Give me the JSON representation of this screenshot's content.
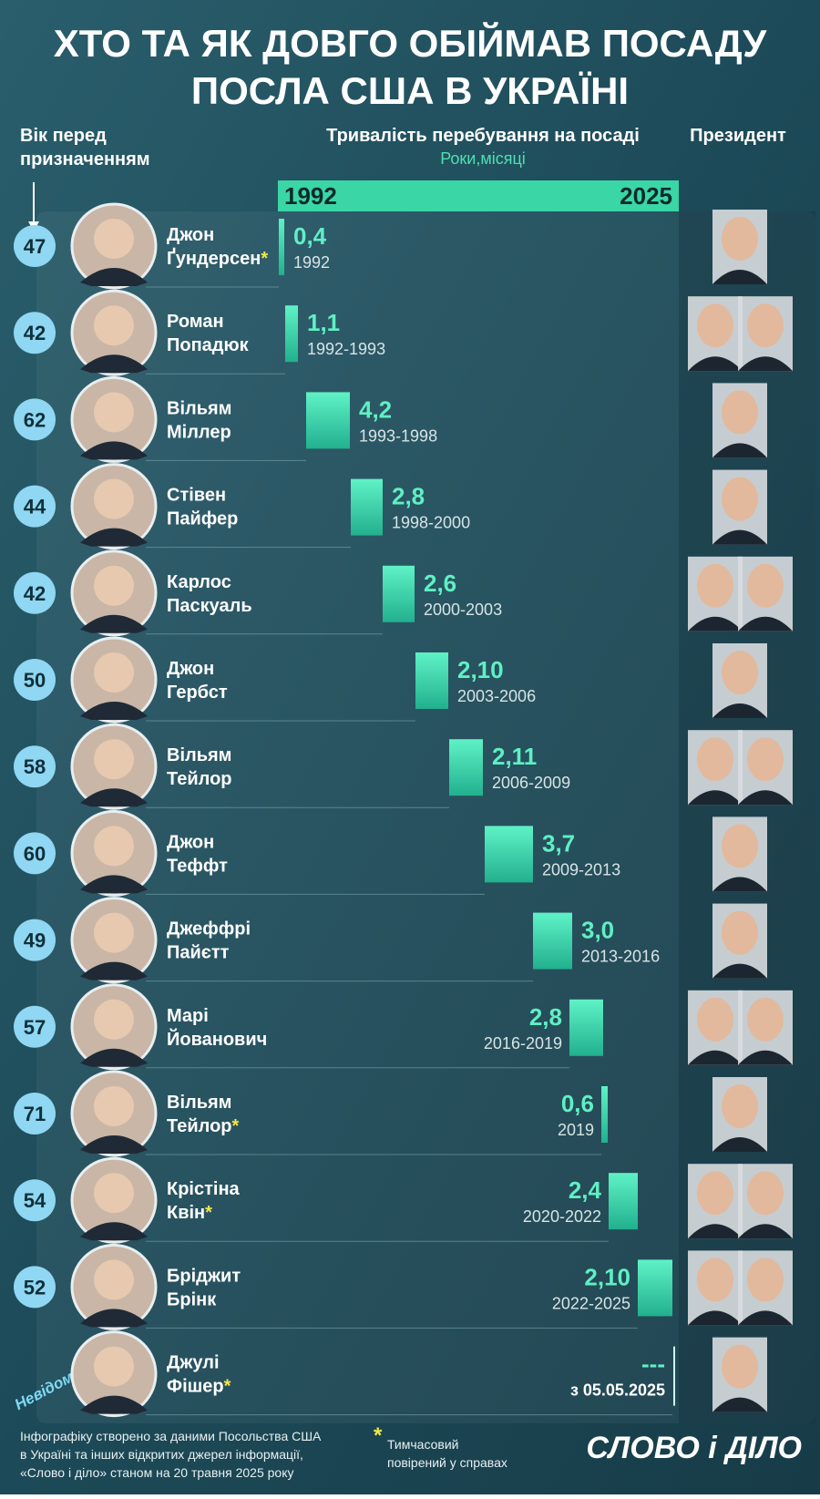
{
  "header": {
    "title_lines": [
      "ХТО ТА ЯК ДОВГО ОБІЙМАВ ПОСАДУ",
      "ПОСЛА США В УКРАЇНІ"
    ],
    "age_header_lines": [
      "Вік перед",
      "призначенням"
    ],
    "duration_header": "Тривалість перебування на посаді",
    "duration_units": "Роки,місяці",
    "timeline_start": "1992",
    "timeline_end": "2025",
    "president_header": "Президент"
  },
  "rows": [
    {
      "age": "47",
      "name_lines": [
        "Джон",
        "Ґундерсен"
      ],
      "asterisk": "*",
      "duration": "0,4",
      "period": "1992"
    },
    {
      "age": "42",
      "name_lines": [
        "Роман",
        "Попадюк"
      ],
      "duration": "1,1",
      "period": "1992-1993"
    },
    {
      "age": "62",
      "name_lines": [
        "Вільям",
        "Міллер"
      ],
      "duration": "4,2",
      "period": "1993-1998"
    },
    {
      "age": "44",
      "name_lines": [
        "Стівен",
        "Пайфер"
      ],
      "duration": "2,8",
      "period": "1998-2000"
    },
    {
      "age": "42",
      "name_lines": [
        "Карлос",
        "Паскуаль"
      ],
      "duration": "2,6",
      "period": "2000-2003"
    },
    {
      "age": "50",
      "name_lines": [
        "Джон",
        "Гербст"
      ],
      "duration": "2,10",
      "period": "2003-2006"
    },
    {
      "age": "58",
      "name_lines": [
        "Вільям",
        "Тейлор"
      ],
      "duration": "2,11",
      "period": "2006-2009"
    },
    {
      "age": "60",
      "name_lines": [
        "Джон",
        "Теффт"
      ],
      "duration": "3,7",
      "period": "2009-2013"
    },
    {
      "age": "49",
      "name_lines": [
        "Джеффрі",
        "Пайєтт"
      ],
      "duration": "3,0",
      "period": "2013-2016"
    },
    {
      "age": "57",
      "name_lines": [
        "Марі",
        "Йованович"
      ],
      "duration": "2,8",
      "period": "2016-2019"
    },
    {
      "age": "71",
      "name_lines": [
        "Вільям",
        "Тейлор"
      ],
      "asterisk": "*",
      "duration": "0,6",
      "period": "2019"
    },
    {
      "age": "54",
      "name_lines": [
        "Крістіна",
        "Квін"
      ],
      "asterisk": "*",
      "duration": "2,4",
      "period": "2020-2022"
    },
    {
      "age": "52",
      "name_lines": [
        "Бріджит",
        "Брінк"
      ],
      "duration": "2,10",
      "period": "2022-2025"
    },
    {
      "age": "Невідомо",
      "name_lines": [
        "Джулі",
        "Фішер"
      ],
      "asterisk": "*",
      "duration": "---",
      "period": "з 05.05.2025"
    }
  ],
  "footer": {
    "source_lines": [
      "Інфографіку створено за даними Посольства США",
      "в Україні та інших відкритих джерел інформації,",
      "«Слово і діло» станом на 20 травня 2025 року"
    ],
    "note_marker": "*",
    "note_lines": [
      "Тимчасовий",
      "повірений у справах"
    ],
    "logo": "СЛОВО і ДІЛО"
  }
}
